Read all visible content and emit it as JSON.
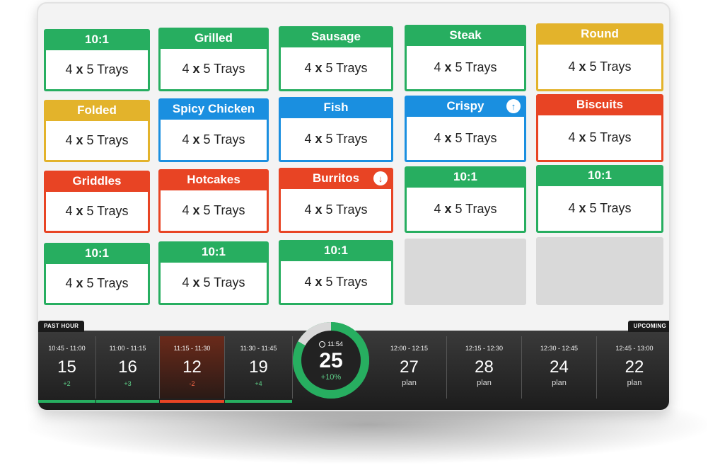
{
  "tiles": [
    {
      "title": "10:1",
      "count": "4",
      "mult": "x",
      "unit": "5 Trays",
      "color": "green"
    },
    {
      "title": "Grilled",
      "count": "4",
      "mult": "x",
      "unit": "5 Trays",
      "color": "green"
    },
    {
      "title": "Sausage",
      "count": "4",
      "mult": "x",
      "unit": "5 Trays",
      "color": "green"
    },
    {
      "title": "Steak",
      "count": "4",
      "mult": "x",
      "unit": "5 Trays",
      "color": "green"
    },
    {
      "title": "Round",
      "count": "4",
      "mult": "x",
      "unit": "5 Trays",
      "color": "yellow"
    },
    {
      "title": "Folded",
      "count": "4",
      "mult": "x",
      "unit": "5 Trays",
      "color": "yellow"
    },
    {
      "title": "Spicy Chicken",
      "count": "4",
      "mult": "x",
      "unit": "5 Trays",
      "color": "blue"
    },
    {
      "title": "Fish",
      "count": "4",
      "mult": "x",
      "unit": "5 Trays",
      "color": "blue"
    },
    {
      "title": "Crispy",
      "count": "4",
      "mult": "x",
      "unit": "5 Trays",
      "color": "blue",
      "badge": "↑"
    },
    {
      "title": "Biscuits",
      "count": "4",
      "mult": "x",
      "unit": "5 Trays",
      "color": "red"
    },
    {
      "title": "Griddles",
      "count": "4",
      "mult": "x",
      "unit": "5 Trays",
      "color": "red"
    },
    {
      "title": "Hotcakes",
      "count": "4",
      "mult": "x",
      "unit": "5 Trays",
      "color": "red"
    },
    {
      "title": "Burritos",
      "count": "4",
      "mult": "x",
      "unit": "5 Trays",
      "color": "red",
      "badge": "↓"
    },
    {
      "title": "10:1",
      "count": "4",
      "mult": "x",
      "unit": "5 Trays",
      "color": "green"
    },
    {
      "title": "10:1",
      "count": "4",
      "mult": "x",
      "unit": "5 Trays",
      "color": "green"
    },
    {
      "title": "10:1",
      "count": "4",
      "mult": "x",
      "unit": "5 Trays",
      "color": "green"
    },
    {
      "title": "10:1",
      "count": "4",
      "mult": "x",
      "unit": "5 Trays",
      "color": "green"
    },
    {
      "title": "10:1",
      "count": "4",
      "mult": "x",
      "unit": "5 Trays",
      "color": "green"
    }
  ],
  "timeline": {
    "past_label": "PAST HOUR",
    "upcoming_label": "UPCOMING",
    "past": [
      {
        "range": "10:45 - 11:00",
        "value": "15",
        "delta": "+2",
        "status": "good"
      },
      {
        "range": "11:00 - 11:15",
        "value": "16",
        "delta": "+3",
        "status": "good"
      },
      {
        "range": "11:15 - 11:30",
        "value": "12",
        "delta": "-2",
        "status": "bad"
      },
      {
        "range": "11:30 - 11:45",
        "value": "19",
        "delta": "+4",
        "status": "good"
      }
    ],
    "current": {
      "time": "11:54",
      "value": "25",
      "delta": "+10%"
    },
    "upcoming": [
      {
        "range": "12:00 - 12:15",
        "value": "27",
        "note": "plan"
      },
      {
        "range": "12:15 - 12:30",
        "value": "28",
        "note": "plan"
      },
      {
        "range": "12:30 - 12:45",
        "value": "24",
        "note": "plan"
      },
      {
        "range": "12:45 - 13:00",
        "value": "22",
        "note": "plan"
      }
    ]
  },
  "colors": {
    "green": "#27ae60",
    "yellow": "#e3b32b",
    "blue": "#1a8fe0",
    "red": "#e84424"
  }
}
